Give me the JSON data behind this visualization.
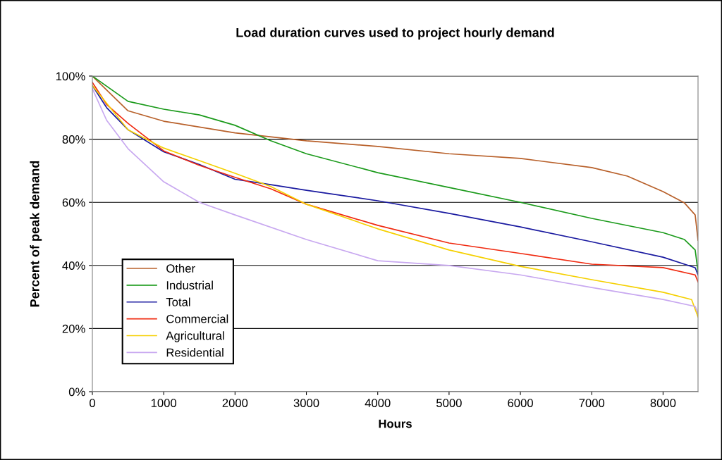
{
  "chart_data": {
    "type": "line",
    "title": "Load duration curves used to project hourly demand",
    "xlabel": "Hours",
    "ylabel": "Percent of peak demand",
    "xlim": [
      0,
      8490
    ],
    "xticks": [
      0,
      1000,
      2000,
      3000,
      4000,
      5000,
      6000,
      7000,
      8000
    ],
    "ylim": [
      0,
      100
    ],
    "yticks": [
      {
        "value": 0,
        "label": "0%"
      },
      {
        "value": 20,
        "label": "20%"
      },
      {
        "value": 40,
        "label": "40%"
      },
      {
        "value": 60,
        "label": "60%"
      },
      {
        "value": 80,
        "label": "80%"
      },
      {
        "value": 100,
        "label": "100%"
      }
    ],
    "grid": "y",
    "legend": "bottom left",
    "line_style": "solid",
    "series": [
      {
        "name": "Other",
        "color": "#b8602a",
        "x": [
          0,
          500,
          1000,
          2000,
          3000,
          4000,
          5000,
          6000,
          7000,
          7500,
          8000,
          8300,
          8450,
          8490
        ],
        "values": [
          100,
          89,
          85.7,
          82,
          79.5,
          77.7,
          75.4,
          73.9,
          71,
          68.3,
          63.4,
          59.8,
          56,
          48
        ]
      },
      {
        "name": "Industrial",
        "color": "#1a9a1a",
        "x": [
          0,
          500,
          1000,
          1500,
          2000,
          2500,
          3000,
          4000,
          5000,
          6000,
          7000,
          8000,
          8300,
          8450,
          8490
        ],
        "values": [
          100,
          92,
          89.5,
          87.7,
          84.4,
          79.5,
          75.4,
          69.4,
          64.7,
          60,
          54.9,
          50.4,
          48.2,
          44.9,
          38
        ]
      },
      {
        "name": "Total",
        "color": "#1a1aa0",
        "x": [
          0,
          200,
          500,
          1000,
          1500,
          2000,
          2500,
          3000,
          4000,
          5000,
          6000,
          7000,
          8000,
          8450,
          8490
        ],
        "values": [
          97,
          90,
          83,
          76,
          72,
          67.3,
          65.6,
          63.8,
          60.5,
          56.5,
          52.2,
          47.5,
          42.6,
          39.3,
          37
        ]
      },
      {
        "name": "Commercial",
        "color": "#f02a10",
        "x": [
          0,
          200,
          500,
          1000,
          1500,
          2000,
          2500,
          3000,
          4000,
          5000,
          6000,
          7000,
          8000,
          8450,
          8490
        ],
        "values": [
          98,
          91,
          85,
          76.3,
          71.7,
          67.9,
          64.3,
          59.4,
          52.7,
          47.1,
          43.8,
          40.4,
          39.3,
          37,
          34.8
        ]
      },
      {
        "name": "Agricultural",
        "color": "#f5d000",
        "x": [
          0,
          500,
          1000,
          1500,
          2000,
          2500,
          3000,
          4000,
          5000,
          6000,
          7000,
          8000,
          8400,
          8490
        ],
        "values": [
          97,
          83,
          77.2,
          73.2,
          69.2,
          65,
          59.4,
          51.6,
          44.9,
          39.7,
          35.5,
          31.5,
          29.2,
          23.7
        ]
      },
      {
        "name": "Residential",
        "color": "#c8a8f0",
        "x": [
          0,
          200,
          500,
          1000,
          1500,
          2000,
          3000,
          4000,
          5000,
          6000,
          7000,
          8000,
          8450,
          8490
        ],
        "values": [
          96,
          86,
          77,
          66.5,
          60,
          56,
          48.2,
          41.5,
          40,
          37,
          33,
          29.2,
          27,
          24.8
        ]
      }
    ]
  }
}
